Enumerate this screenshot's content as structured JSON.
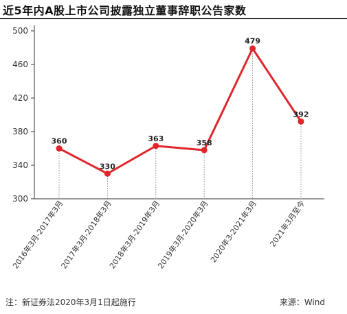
{
  "chart_data": {
    "type": "line",
    "title": "近5年内A股上市公司披露独立董事辞职公告家数",
    "categories": [
      "2016年3月-2017年3月",
      "2017年3月-2018年3月",
      "2018年3月-2019年3月",
      "2019年3月-2020年3月",
      "2020年3-2021年3月",
      "2021年3月至今"
    ],
    "series": [
      {
        "values": [
          360,
          330,
          363,
          358,
          479,
          392
        ]
      }
    ],
    "data_labels": [
      "360",
      "330",
      "363",
      "358",
      "479",
      "392"
    ],
    "yticks": [
      "300",
      "340",
      "380",
      "420",
      "460",
      "500"
    ],
    "ylim": [
      300,
      500
    ],
    "line_color": "#e0262a",
    "grid": "vertical-dotted-drop-lines",
    "legend": "none"
  },
  "footer": {
    "note": "注：新证券法2020年3月1日起施行",
    "source": "来源：Wind"
  }
}
